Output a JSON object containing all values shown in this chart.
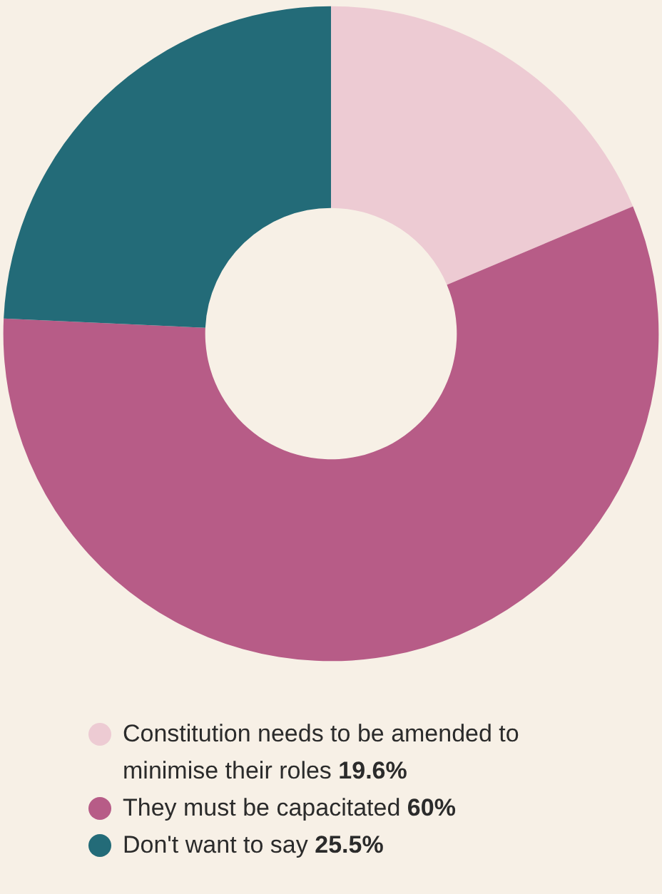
{
  "chart_data": {
    "type": "donut",
    "categories": [
      "Constitution needs to be amended to minimise their roles",
      "They must be capacitated",
      "Don't want to say"
    ],
    "values": [
      19.6,
      60,
      25.5
    ],
    "value_labels": [
      "19.6%",
      "60%",
      "25.5%"
    ],
    "colors": [
      "#edcbd3",
      "#b75c87",
      "#236b78"
    ],
    "legend": "bottom"
  }
}
